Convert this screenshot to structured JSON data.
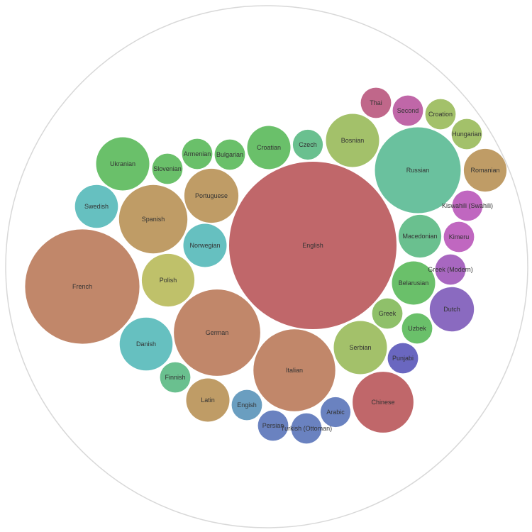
{
  "chart_data": {
    "type": "bubble-pack",
    "title": "",
    "bubbles": [
      {
        "label": "English",
        "value": 100,
        "color": "#c0676a"
      },
      {
        "label": "French",
        "value": 46.7,
        "color": "#c1876a"
      },
      {
        "label": "Russian",
        "value": 26.3,
        "color": "#6ac19e"
      },
      {
        "label": "German",
        "value": 26.6,
        "color": "#c1876a"
      },
      {
        "label": "Italian",
        "value": 23.9,
        "color": "#c1876a"
      },
      {
        "label": "Spanish",
        "value": 16.7,
        "color": "#bf9c66"
      },
      {
        "label": "Chinese",
        "value": 13.2,
        "color": "#c0676a"
      },
      {
        "label": "Ukranian",
        "value": 10.1,
        "color": "#6ac06a"
      },
      {
        "label": "Bosnian",
        "value": 10.1,
        "color": "#a3c16a"
      },
      {
        "label": "Serbian",
        "value": 10.1,
        "color": "#a3c16a"
      },
      {
        "label": "Polish",
        "value": 9.9,
        "color": "#bfc16a"
      },
      {
        "label": "Portuguese",
        "value": 10.4,
        "color": "#bf9c66"
      },
      {
        "label": "Danish",
        "value": 10.0,
        "color": "#66c0c0"
      },
      {
        "label": "Macedonian",
        "value": 6.5,
        "color": "#6ac08f"
      },
      {
        "label": "Belarusian",
        "value": 6.7,
        "color": "#6ac06a"
      },
      {
        "label": "Dutch",
        "value": 7.0,
        "color": "#8a6ac0"
      },
      {
        "label": "Norwegian",
        "value": 6.7,
        "color": "#66c0c0"
      },
      {
        "label": "Croatian",
        "value": 6.7,
        "color": "#6ac06a"
      },
      {
        "label": "Latin",
        "value": 6.7,
        "color": "#bf9c66"
      },
      {
        "label": "Romanian",
        "value": 6.5,
        "color": "#bf9c66"
      },
      {
        "label": "Swedish",
        "value": 6.6,
        "color": "#66c0c0"
      },
      {
        "label": "Arabic",
        "value": 3.2,
        "color": "#6a82c0"
      },
      {
        "label": "Czech",
        "value": 3.2,
        "color": "#6ac08f"
      },
      {
        "label": "Armenian",
        "value": 3.3,
        "color": "#6ac06a"
      },
      {
        "label": "Slovenian",
        "value": 3.3,
        "color": "#6ac06a"
      },
      {
        "label": "Bulgarian",
        "value": 3.3,
        "color": "#6ac06a"
      },
      {
        "label": "Thai",
        "value": 3.3,
        "color": "#c0678a"
      },
      {
        "label": "Second",
        "value": 3.3,
        "color": "#c067a8"
      },
      {
        "label": "Croation",
        "value": 3.3,
        "color": "#a3c16a"
      },
      {
        "label": "Hungarian",
        "value": 3.3,
        "color": "#a3c16a"
      },
      {
        "label": "Kiswahili (Swahili)",
        "value": 3.3,
        "color": "#c067c0"
      },
      {
        "label": "Kimeru",
        "value": 3.3,
        "color": "#c067c0"
      },
      {
        "label": "Greek (Modern)",
        "value": 3.3,
        "color": "#a867c0"
      },
      {
        "label": "Greek",
        "value": 3.3,
        "color": "#8fc06a"
      },
      {
        "label": "Uzbek",
        "value": 3.3,
        "color": "#6ac06a"
      },
      {
        "label": "Punjabi",
        "value": 3.3,
        "color": "#6a67c0"
      },
      {
        "label": "Finnish",
        "value": 3.3,
        "color": "#6ac08f"
      },
      {
        "label": "Engish",
        "value": 3.3,
        "color": "#6a9ec0"
      },
      {
        "label": "Persian",
        "value": 3.3,
        "color": "#6a82c0"
      },
      {
        "label": "Turkish (Ottoman)",
        "value": 3.3,
        "color": "#6a82c0"
      }
    ]
  }
}
